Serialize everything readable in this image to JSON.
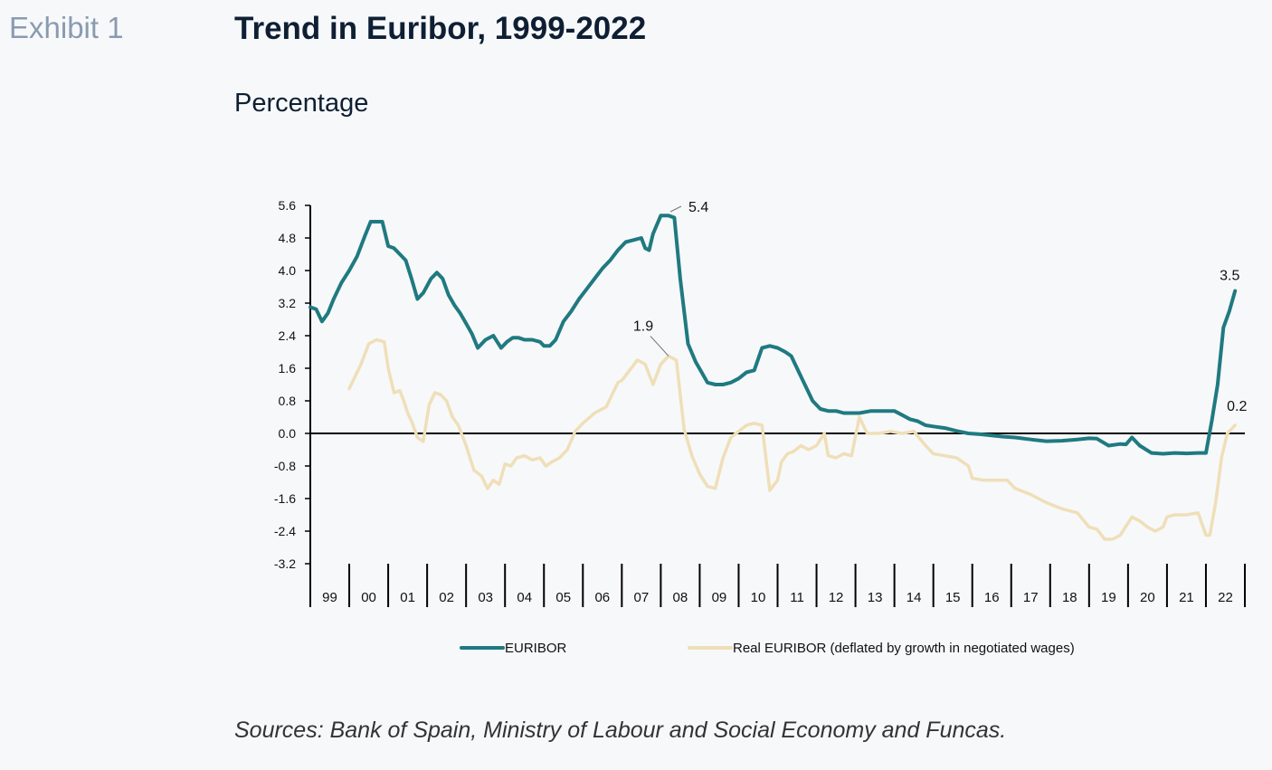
{
  "header": {
    "exhibit": "Exhibit 1",
    "title": "Trend in Euribor, 1999-2022",
    "subtitle": "Percentage"
  },
  "footer": {
    "source": "Sources: Bank of Spain, Ministry of Labour and Social Economy and Funcas."
  },
  "colors": {
    "euribor": "#1f7a80",
    "real_euribor": "#efdfb8",
    "axis": "#000000",
    "text": "#0f1f33"
  },
  "chart_data": {
    "type": "line",
    "ylim": [
      -3.2,
      5.6
    ],
    "yticks": [
      "5.6",
      "4.8",
      "4.0",
      "3.2",
      "2.4",
      "1.6",
      "0.8",
      "0.0",
      "-0.8",
      "-1.6",
      "-2.4",
      "-3.2"
    ],
    "yticks_values": [
      5.6,
      4.8,
      4.0,
      3.2,
      2.4,
      1.6,
      0.8,
      0.0,
      -0.8,
      -1.6,
      -2.4,
      -3.2
    ],
    "categories": [
      "99",
      "00",
      "01",
      "02",
      "03",
      "04",
      "05",
      "06",
      "07",
      "08",
      "09",
      "10",
      "11",
      "12",
      "13",
      "14",
      "15",
      "16",
      "17",
      "18",
      "19",
      "20",
      "21",
      "22"
    ],
    "legend_position": "bottom",
    "series": [
      {
        "name": "EURIBOR",
        "color": "#1f7a80",
        "x": [
          1999.0,
          1999.15,
          1999.3,
          1999.45,
          1999.6,
          1999.8,
          2000.0,
          2000.2,
          2000.4,
          2000.55,
          2000.7,
          2000.85,
          2001.0,
          2001.15,
          2001.3,
          2001.45,
          2001.6,
          2001.75,
          2001.9,
          2002.1,
          2002.25,
          2002.4,
          2002.55,
          2002.7,
          2002.85,
          2003.0,
          2003.15,
          2003.3,
          2003.5,
          2003.7,
          2003.9,
          2004.05,
          2004.2,
          2004.35,
          2004.5,
          2004.7,
          2004.9,
          2005.0,
          2005.15,
          2005.3,
          2005.5,
          2005.7,
          2005.9,
          2006.1,
          2006.3,
          2006.5,
          2006.7,
          2006.9,
          2007.1,
          2007.3,
          2007.5,
          2007.6,
          2007.7,
          2007.8,
          2008.0,
          2008.2,
          2008.35,
          2008.5,
          2008.7,
          2008.9,
          2009.05,
          2009.2,
          2009.4,
          2009.6,
          2009.8,
          2010.0,
          2010.2,
          2010.4,
          2010.6,
          2010.8,
          2011.0,
          2011.2,
          2011.35,
          2011.5,
          2011.7,
          2011.9,
          2012.1,
          2012.3,
          2012.5,
          2012.7,
          2012.9,
          2013.1,
          2013.4,
          2013.7,
          2014.0,
          2014.2,
          2014.4,
          2014.6,
          2014.8,
          2015.0,
          2015.3,
          2015.6,
          2015.9,
          2016.2,
          2016.5,
          2016.8,
          2017.1,
          2017.5,
          2017.9,
          2018.3,
          2018.7,
          2019.0,
          2019.2,
          2019.5,
          2019.8,
          2019.95,
          2020.1,
          2020.3,
          2020.6,
          2020.9,
          2021.2,
          2021.5,
          2021.8,
          2022.0,
          2022.15,
          2022.3,
          2022.45,
          2022.6,
          2022.75
        ],
        "values": [
          3.1,
          3.05,
          2.75,
          2.95,
          3.3,
          3.7,
          4.0,
          4.35,
          4.85,
          5.2,
          5.2,
          5.2,
          4.6,
          4.55,
          4.4,
          4.25,
          3.8,
          3.3,
          3.45,
          3.8,
          3.95,
          3.8,
          3.4,
          3.15,
          2.95,
          2.7,
          2.45,
          2.1,
          2.3,
          2.4,
          2.1,
          2.25,
          2.35,
          2.35,
          2.3,
          2.3,
          2.25,
          2.15,
          2.15,
          2.3,
          2.75,
          3.0,
          3.3,
          3.55,
          3.8,
          4.05,
          4.25,
          4.5,
          4.7,
          4.75,
          4.8,
          4.55,
          4.5,
          4.9,
          5.35,
          5.35,
          5.3,
          3.8,
          2.2,
          1.75,
          1.5,
          1.25,
          1.2,
          1.2,
          1.25,
          1.35,
          1.5,
          1.55,
          2.1,
          2.15,
          2.1,
          2.0,
          1.9,
          1.6,
          1.2,
          0.8,
          0.6,
          0.55,
          0.55,
          0.5,
          0.5,
          0.5,
          0.55,
          0.55,
          0.55,
          0.45,
          0.35,
          0.3,
          0.2,
          0.17,
          0.13,
          0.06,
          0.0,
          -0.02,
          -0.05,
          -0.08,
          -0.1,
          -0.15,
          -0.19,
          -0.18,
          -0.15,
          -0.12,
          -0.13,
          -0.3,
          -0.26,
          -0.27,
          -0.1,
          -0.3,
          -0.48,
          -0.5,
          -0.48,
          -0.49,
          -0.48,
          -0.48,
          0.3,
          1.2,
          2.6,
          3.0,
          3.5
        ]
      },
      {
        "name": "Real EURIBOR (deflated by growth in negotiated wages)",
        "color": "#efdfb8",
        "x": [
          2000.0,
          2000.3,
          2000.5,
          2000.7,
          2000.9,
          2001.0,
          2001.15,
          2001.3,
          2001.4,
          2001.5,
          2001.6,
          2001.75,
          2001.9,
          2002.05,
          2002.2,
          2002.35,
          2002.5,
          2002.65,
          2002.8,
          2003.0,
          2003.2,
          2003.4,
          2003.55,
          2003.7,
          2003.85,
          2004.0,
          2004.15,
          2004.3,
          2004.5,
          2004.7,
          2004.9,
          2005.05,
          2005.2,
          2005.4,
          2005.6,
          2005.8,
          2006.0,
          2006.3,
          2006.6,
          2006.9,
          2007.0,
          2007.2,
          2007.4,
          2007.6,
          2007.8,
          2008.0,
          2008.2,
          2008.4,
          2008.6,
          2008.8,
          2009.0,
          2009.2,
          2009.4,
          2009.6,
          2009.8,
          2010.0,
          2010.2,
          2010.4,
          2010.6,
          2010.8,
          2011.0,
          2011.1,
          2011.25,
          2011.4,
          2011.6,
          2011.8,
          2012.0,
          2012.2,
          2012.3,
          2012.5,
          2012.7,
          2012.9,
          2013.1,
          2013.3,
          2013.6,
          2013.9,
          2014.2,
          2014.5,
          2014.8,
          2015.0,
          2015.3,
          2015.6,
          2015.9,
          2016.0,
          2016.3,
          2016.6,
          2016.9,
          2017.1,
          2017.5,
          2017.9,
          2018.3,
          2018.7,
          2019.0,
          2019.2,
          2019.4,
          2019.6,
          2019.8,
          2020.0,
          2020.1,
          2020.3,
          2020.5,
          2020.7,
          2020.9,
          2021.0,
          2021.2,
          2021.5,
          2021.8,
          2022.0,
          2022.1,
          2022.25,
          2022.4,
          2022.55,
          2022.75
        ],
        "values": [
          1.1,
          1.7,
          2.2,
          2.3,
          2.25,
          1.6,
          1.0,
          1.05,
          0.8,
          0.5,
          0.3,
          -0.1,
          -0.2,
          0.7,
          1.0,
          0.95,
          0.8,
          0.4,
          0.2,
          -0.3,
          -0.9,
          -1.05,
          -1.35,
          -1.15,
          -1.25,
          -0.75,
          -0.8,
          -0.6,
          -0.55,
          -0.65,
          -0.6,
          -0.8,
          -0.7,
          -0.6,
          -0.4,
          0.05,
          0.25,
          0.5,
          0.65,
          1.25,
          1.3,
          1.55,
          1.8,
          1.7,
          1.2,
          1.7,
          1.9,
          1.8,
          0.1,
          -0.55,
          -1.0,
          -1.3,
          -1.35,
          -0.6,
          -0.1,
          0.05,
          0.2,
          0.25,
          0.2,
          -1.4,
          -1.15,
          -0.7,
          -0.5,
          -0.45,
          -0.3,
          -0.4,
          -0.3,
          0.0,
          -0.55,
          -0.6,
          -0.5,
          -0.55,
          0.4,
          0.0,
          0.0,
          0.05,
          0.0,
          0.05,
          -0.3,
          -0.5,
          -0.55,
          -0.6,
          -0.8,
          -1.1,
          -1.15,
          -1.15,
          -1.15,
          -1.35,
          -1.5,
          -1.7,
          -1.85,
          -1.95,
          -2.3,
          -2.35,
          -2.6,
          -2.6,
          -2.5,
          -2.2,
          -2.05,
          -2.15,
          -2.3,
          -2.4,
          -2.3,
          -2.05,
          -2.0,
          -2.0,
          -1.95,
          -2.5,
          -2.5,
          -1.7,
          -0.6,
          0.0,
          0.2
        ]
      }
    ],
    "annotations": [
      {
        "label": "5.4",
        "x": 2008.2,
        "y": 5.4,
        "series": "EURIBOR"
      },
      {
        "label": "3.5",
        "x": 2022.75,
        "y": 3.5,
        "series": "EURIBOR"
      },
      {
        "label": "1.9",
        "x": 2008.2,
        "y": 1.9,
        "series": "Real EURIBOR (deflated by growth in negotiated wages)"
      },
      {
        "label": "0.2",
        "x": 2022.75,
        "y": 0.2,
        "series": "Real EURIBOR (deflated by growth in negotiated wages)"
      }
    ]
  }
}
